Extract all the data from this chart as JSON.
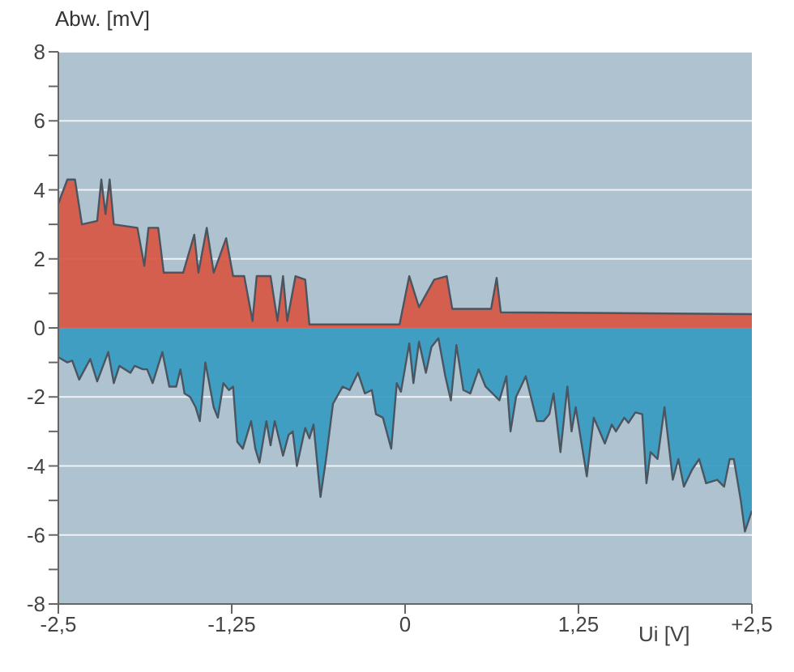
{
  "chart_data": {
    "type": "area",
    "xlabel": "Ui [V]",
    "ylabel": "Abw. [mV]",
    "xlim": [
      -2.5,
      2.5
    ],
    "xticks": [
      {
        "value": -2.5,
        "label": "-2,5"
      },
      {
        "value": -1.25,
        "label": "-1,25"
      },
      0,
      {
        "value": 1.25,
        "label": "1,25"
      },
      {
        "value": 2.5,
        "label": "+2,5"
      }
    ],
    "ylim": [
      -8,
      8
    ],
    "yticks": [
      -8,
      {
        "value": -7,
        "label": null
      },
      -6,
      {
        "value": -5,
        "label": null
      },
      -4,
      {
        "value": -3,
        "label": null
      },
      -2,
      {
        "value": -1,
        "label": null
      },
      0,
      {
        "value": 1,
        "label": null
      },
      2,
      {
        "value": 3,
        "label": null
      },
      4,
      {
        "value": 5,
        "label": null
      },
      6,
      {
        "value": 7,
        "label": null
      },
      8
    ],
    "grid": "y",
    "series": [
      {
        "color": "#d75a48",
        "x": [
          -2.5,
          -2.435,
          -2.38,
          -2.33,
          -2.22,
          -2.19,
          -2.16,
          -2.13,
          -2.1,
          -1.93,
          -1.88,
          -1.85,
          -1.78,
          -1.74,
          -1.6,
          -1.52,
          -1.49,
          -1.43,
          -1.38,
          -1.29,
          -1.24,
          -1.16,
          -1.1,
          -1.07,
          -0.97,
          -0.92,
          -0.88,
          -0.85,
          -0.79,
          -0.72,
          -0.69,
          -0.04,
          0.03,
          0.1,
          0.21,
          0.3,
          0.34,
          0.62,
          0.66,
          0.69,
          2.5
        ],
        "values": [
          3.6,
          4.3,
          4.3,
          3.0,
          3.1,
          4.3,
          3.3,
          4.3,
          3.0,
          2.9,
          1.8,
          2.9,
          2.9,
          1.6,
          1.6,
          2.7,
          1.6,
          2.9,
          1.6,
          2.6,
          1.5,
          1.5,
          0.2,
          1.5,
          1.5,
          0.2,
          1.5,
          0.2,
          1.5,
          1.4,
          0.1,
          0.1,
          1.5,
          0.6,
          1.4,
          1.5,
          0.55,
          0.55,
          1.45,
          0.45,
          0.4
        ]
      },
      {
        "color": "#3b9cc2",
        "x": [
          -2.5,
          -2.435,
          -2.4,
          -2.35,
          -2.27,
          -2.22,
          -2.14,
          -2.1,
          -2.06,
          -1.98,
          -1.95,
          -1.89,
          -1.86,
          -1.82,
          -1.75,
          -1.7,
          -1.65,
          -1.62,
          -1.59,
          -1.55,
          -1.51,
          -1.48,
          -1.44,
          -1.38,
          -1.35,
          -1.31,
          -1.27,
          -1.24,
          -1.21,
          -1.17,
          -1.11,
          -1.08,
          -1.05,
          -1.0,
          -0.97,
          -0.94,
          -0.88,
          -0.84,
          -0.81,
          -0.78,
          -0.72,
          -0.69,
          -0.66,
          -0.61,
          -0.57,
          -0.52,
          -0.45,
          -0.4,
          -0.34,
          -0.29,
          -0.24,
          -0.21,
          -0.16,
          -0.1,
          -0.06,
          -0.03,
          0.03,
          0.06,
          0.1,
          0.15,
          0.19,
          0.24,
          0.29,
          0.33,
          0.37,
          0.42,
          0.47,
          0.53,
          0.58,
          0.68,
          0.73,
          0.76,
          0.8,
          0.87,
          0.95,
          1.0,
          1.04,
          1.07,
          1.12,
          1.17,
          1.2,
          1.23,
          1.31,
          1.36,
          1.44,
          1.49,
          1.52,
          1.58,
          1.61,
          1.66,
          1.71,
          1.74,
          1.77,
          1.82,
          1.87,
          1.93,
          1.97,
          2.01,
          2.07,
          2.12,
          2.17,
          2.25,
          2.3,
          2.34,
          2.37,
          2.42,
          2.45,
          2.5
        ],
        "values": [
          -0.85,
          -1.0,
          -0.95,
          -1.5,
          -0.9,
          -1.55,
          -0.7,
          -1.6,
          -1.1,
          -1.3,
          -1.1,
          -1.2,
          -1.2,
          -1.6,
          -0.7,
          -1.7,
          -1.7,
          -1.2,
          -1.9,
          -2.0,
          -2.3,
          -2.7,
          -1.0,
          -2.3,
          -2.6,
          -1.6,
          -1.8,
          -1.7,
          -3.3,
          -3.5,
          -2.7,
          -3.5,
          -3.9,
          -2.7,
          -3.4,
          -2.7,
          -3.7,
          -3.1,
          -3.0,
          -4.0,
          -2.9,
          -3.2,
          -2.8,
          -4.9,
          -3.8,
          -2.2,
          -1.7,
          -1.8,
          -1.3,
          -1.9,
          -1.8,
          -2.5,
          -2.6,
          -3.5,
          -1.6,
          -1.85,
          -0.45,
          -1.6,
          -0.4,
          -1.3,
          -0.55,
          -0.3,
          -1.4,
          -2.1,
          -0.5,
          -1.8,
          -1.9,
          -1.2,
          -1.7,
          -2.1,
          -1.4,
          -3.0,
          -2.0,
          -1.4,
          -2.7,
          -2.7,
          -2.5,
          -1.9,
          -3.6,
          -1.7,
          -3.0,
          -2.3,
          -4.3,
          -2.6,
          -3.35,
          -2.8,
          -3.0,
          -2.6,
          -2.75,
          -2.45,
          -2.5,
          -4.5,
          -3.6,
          -3.8,
          -2.3,
          -4.4,
          -3.8,
          -4.6,
          -4.1,
          -3.8,
          -4.5,
          -4.4,
          -4.6,
          -3.8,
          -3.8,
          -5.0,
          -5.9,
          -5.3
        ]
      }
    ]
  }
}
